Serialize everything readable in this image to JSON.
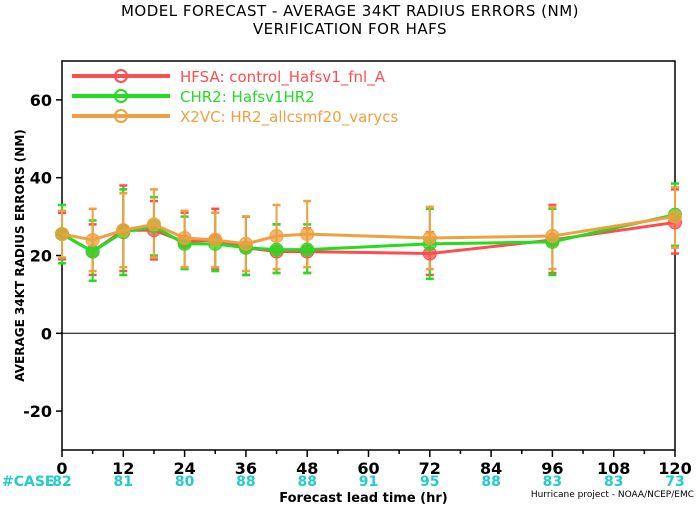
{
  "chart_data": {
    "type": "line",
    "title": "MODEL FORECAST - AVERAGE 34KT RADIUS ERRORS (NM)",
    "subtitle": "VERIFICATION FOR HAFS",
    "xlabel": "Forecast lead time (hr)",
    "ylabel": "AVERAGE 34KT RADIUS ERRORS (NM)",
    "xlim": [
      0,
      120
    ],
    "ylim": [
      -30,
      70
    ],
    "x_ticks": [
      0,
      12,
      24,
      36,
      48,
      60,
      72,
      84,
      96,
      108,
      120
    ],
    "y_ticks": [
      -20,
      0,
      20,
      40,
      60
    ],
    "legend_position": "top-left",
    "case_label": "#CASE",
    "cases": [
      {
        "x": 0,
        "n": "82"
      },
      {
        "x": 12,
        "n": "81"
      },
      {
        "x": 24,
        "n": "80"
      },
      {
        "x": 36,
        "n": "88"
      },
      {
        "x": 48,
        "n": "88"
      },
      {
        "x": 60,
        "n": "91"
      },
      {
        "x": 72,
        "n": "95"
      },
      {
        "x": 84,
        "n": "88"
      },
      {
        "x": 96,
        "n": "83"
      },
      {
        "x": 108,
        "n": "83"
      },
      {
        "x": 120,
        "n": "73"
      }
    ],
    "series": [
      {
        "name": "HFSA: control_Hafsv1_fnl_A",
        "color": "#ff4d4d",
        "points": [
          {
            "x": 0,
            "y": 25.5,
            "lo": 19,
            "hi": 31
          },
          {
            "x": 6,
            "y": 21,
            "lo": 15,
            "hi": 28
          },
          {
            "x": 12,
            "y": 26.5,
            "lo": 16,
            "hi": 38
          },
          {
            "x": 18,
            "y": 26.5,
            "lo": 19,
            "hi": 34
          },
          {
            "x": 24,
            "y": 23.5,
            "lo": 17,
            "hi": 31
          },
          {
            "x": 30,
            "y": 24,
            "lo": 16.5,
            "hi": 32
          },
          {
            "x": 36,
            "y": 22,
            "lo": 15,
            "hi": 30
          },
          {
            "x": 42,
            "y": 21,
            "lo": 15.5,
            "hi": 28
          },
          {
            "x": 48,
            "y": 21,
            "lo": 15.5,
            "hi": 27
          },
          {
            "x": 72,
            "y": 20.5,
            "lo": 15,
            "hi": 26
          },
          {
            "x": 96,
            "y": 24,
            "lo": 15.5,
            "hi": 33
          },
          {
            "x": 120,
            "y": 28.5,
            "lo": 20.5,
            "hi": 37
          }
        ]
      },
      {
        "name": "CHR2: Hafsv1HR2",
        "color": "#22dd22",
        "points": [
          {
            "x": 0,
            "y": 25.5,
            "lo": 18,
            "hi": 33
          },
          {
            "x": 6,
            "y": 21,
            "lo": 13.5,
            "hi": 29
          },
          {
            "x": 12,
            "y": 26,
            "lo": 15,
            "hi": 37
          },
          {
            "x": 18,
            "y": 27.5,
            "lo": 20,
            "hi": 35
          },
          {
            "x": 24,
            "y": 23,
            "lo": 16.5,
            "hi": 30
          },
          {
            "x": 30,
            "y": 23,
            "lo": 16,
            "hi": 31
          },
          {
            "x": 36,
            "y": 22,
            "lo": 15,
            "hi": 30
          },
          {
            "x": 42,
            "y": 21.5,
            "lo": 15.5,
            "hi": 28
          },
          {
            "x": 48,
            "y": 21.5,
            "lo": 15.5,
            "hi": 28
          },
          {
            "x": 72,
            "y": 23,
            "lo": 14,
            "hi": 32
          },
          {
            "x": 96,
            "y": 23.5,
            "lo": 15,
            "hi": 32
          },
          {
            "x": 120,
            "y": 30.5,
            "lo": 22.5,
            "hi": 38.5
          }
        ]
      },
      {
        "name": "X2VC: HR2_allcsmf20_varycs",
        "color": "#f0a040",
        "points": [
          {
            "x": 0,
            "y": 25.5,
            "lo": 19.5,
            "hi": 31.5
          },
          {
            "x": 6,
            "y": 24,
            "lo": 16,
            "hi": 32
          },
          {
            "x": 12,
            "y": 26.5,
            "lo": 17,
            "hi": 36
          },
          {
            "x": 18,
            "y": 28,
            "lo": 19.5,
            "hi": 37
          },
          {
            "x": 24,
            "y": 24.5,
            "lo": 17,
            "hi": 31.5
          },
          {
            "x": 30,
            "y": 24,
            "lo": 17,
            "hi": 31
          },
          {
            "x": 36,
            "y": 23,
            "lo": 16,
            "hi": 30
          },
          {
            "x": 42,
            "y": 25,
            "lo": 16.5,
            "hi": 33
          },
          {
            "x": 48,
            "y": 25.5,
            "lo": 17,
            "hi": 34
          },
          {
            "x": 72,
            "y": 24.5,
            "lo": 16.5,
            "hi": 32.5
          },
          {
            "x": 96,
            "y": 25,
            "lo": 16.5,
            "hi": 32.5
          },
          {
            "x": 120,
            "y": 30,
            "lo": 22,
            "hi": 37.5
          }
        ]
      }
    ]
  },
  "credit": "Hurricane project - NOAA/NCEP/EMC"
}
